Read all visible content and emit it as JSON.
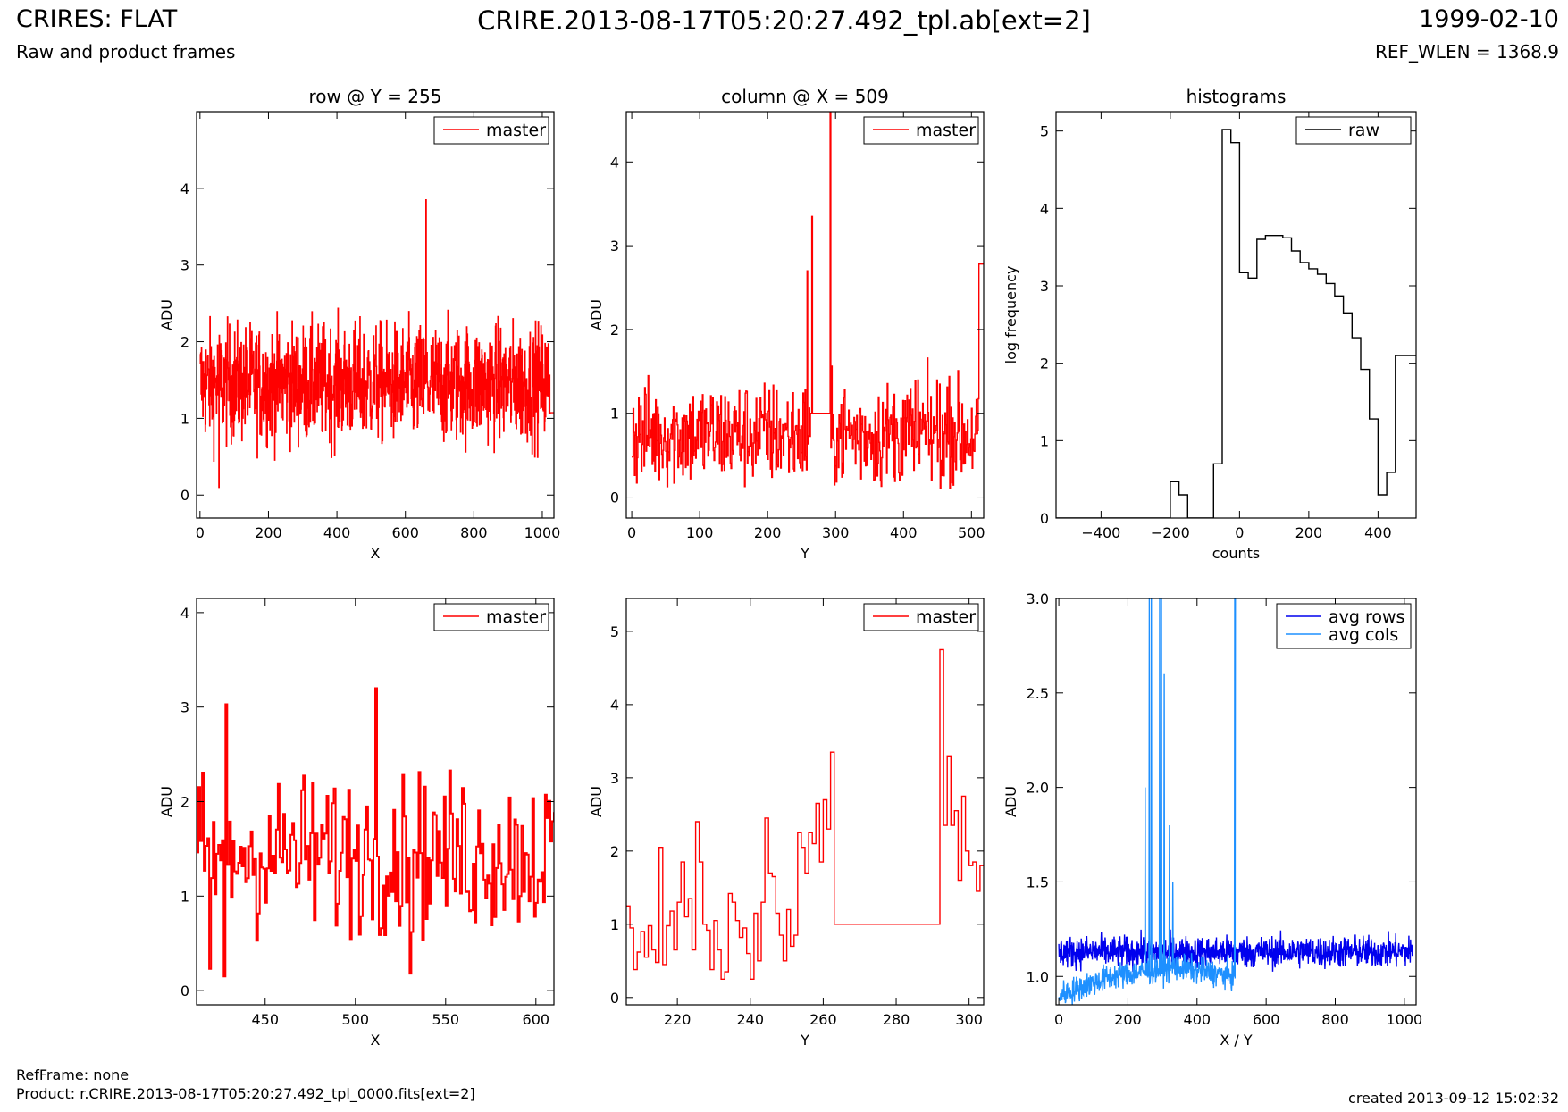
{
  "header": {
    "title": "CRIRES: FLAT",
    "subtitle": "Raw and product frames",
    "file": "CRIRE.2013-08-17T05:20:27.492_tpl.ab[ext=2]",
    "date": "1999-02-10",
    "ref_wlen": "REF_WLEN = 1368.9"
  },
  "footer": {
    "refframe": "RefFrame: none",
    "product": "Product: r.CRIRE.2013-08-17T05:20:27.492_tpl_0000.fits[ext=2]",
    "created": "created 2013-09-12 15:02:32"
  },
  "colors": {
    "red": "#ff0000",
    "black": "#000000",
    "blue": "#0000ee",
    "lightblue": "#1e90ff"
  },
  "chart_data": [
    {
      "id": "row",
      "type": "line",
      "title": "row @ Y = 255",
      "xlabel": "X",
      "ylabel": "ADU",
      "xlim": [
        -10,
        1034
      ],
      "ylim": [
        -0.3,
        5.0
      ],
      "xticks": [
        0,
        200,
        400,
        600,
        800,
        1000
      ],
      "yticks": [
        0,
        1,
        2,
        3,
        4
      ],
      "legend_position": "top-right",
      "series": [
        {
          "name": "master",
          "color": "#ff0000",
          "step": true,
          "generated": {
            "x0": 0,
            "x1": 1023,
            "n": 1024,
            "mean": 1.45,
            "spread": 0.55,
            "spikes": [
              [
                660,
                3.85
              ],
              [
                55,
                0.1
              ]
            ]
          }
        }
      ]
    },
    {
      "id": "column",
      "type": "line",
      "title": "column @ X = 509",
      "xlabel": "Y",
      "ylabel": "ADU",
      "xlim": [
        -8,
        518
      ],
      "ylim": [
        -0.25,
        4.6
      ],
      "xticks": [
        0,
        100,
        200,
        300,
        400,
        500
      ],
      "yticks": [
        0,
        1,
        2,
        3,
        4
      ],
      "legend_position": "top-right",
      "series": [
        {
          "name": "master",
          "color": "#ff0000",
          "step": true,
          "generated": {
            "x0": 0,
            "x1": 511,
            "n": 512,
            "mean": 0.75,
            "spread": 0.45,
            "flat": [
              [
                263,
                292,
                1.0
              ]
            ],
            "spikes": [
              [
                292,
                4.6
              ],
              [
                265,
                3.35
              ],
              [
                511,
                2.78
              ],
              [
                258,
                2.7
              ]
            ]
          }
        }
      ]
    },
    {
      "id": "histograms",
      "type": "line",
      "title": "histograms",
      "xlabel": "counts",
      "ylabel": "log frequency",
      "xlim": [
        -530,
        510
      ],
      "ylim": [
        0,
        5.25
      ],
      "xticks": [
        -400,
        -200,
        0,
        200,
        400
      ],
      "yticks": [
        0,
        1,
        2,
        3,
        4,
        5
      ],
      "legend_position": "top-right",
      "series": [
        {
          "name": "raw",
          "color": "#000000",
          "step": true,
          "x": [
            -530,
            -200,
            -175,
            -150,
            -75,
            -50,
            -25,
            0,
            25,
            50,
            75,
            100,
            125,
            150,
            175,
            200,
            225,
            250,
            275,
            300,
            325,
            350,
            375,
            400,
            425,
            450,
            475,
            500
          ],
          "y": [
            0,
            0.47,
            0.3,
            0,
            0.7,
            5.02,
            4.85,
            3.17,
            3.1,
            3.6,
            3.65,
            3.65,
            3.62,
            3.45,
            3.3,
            3.22,
            3.15,
            3.03,
            2.87,
            2.65,
            2.33,
            1.92,
            1.28,
            0.3,
            0.59,
            2.1,
            2.1,
            2.1
          ]
        }
      ]
    },
    {
      "id": "row-zoom",
      "type": "line",
      "title": "",
      "xlabel": "X",
      "ylabel": "ADU",
      "xlim": [
        412,
        610
      ],
      "ylim": [
        -0.15,
        4.15
      ],
      "xticks": [
        450,
        500,
        550,
        600
      ],
      "yticks": [
        0,
        1,
        2,
        3,
        4
      ],
      "legend_position": "top-right",
      "series": [
        {
          "name": "master",
          "color": "#ff0000",
          "step": true,
          "generated": {
            "x0": 412,
            "x1": 610,
            "n": 199,
            "mean": 1.45,
            "spread": 0.6,
            "spikes": [
              [
                511,
                3.2
              ],
              [
                428,
                3.03
              ],
              [
                530,
                0.18
              ],
              [
                427,
                0.15
              ],
              [
                419,
                0.23
              ]
            ]
          }
        }
      ]
    },
    {
      "id": "column-zoom",
      "type": "line",
      "title": "",
      "xlabel": "Y",
      "ylabel": "ADU",
      "xlim": [
        206,
        304
      ],
      "ylim": [
        -0.1,
        5.45
      ],
      "xticks": [
        220,
        240,
        260,
        280,
        300
      ],
      "yticks": [
        0,
        1,
        2,
        3,
        4,
        5
      ],
      "legend_position": "top-right",
      "series": [
        {
          "name": "master",
          "color": "#ff0000",
          "step": true,
          "x": [
            206,
            207,
            208,
            209,
            210,
            211,
            212,
            213,
            214,
            215,
            216,
            217,
            218,
            219,
            220,
            221,
            222,
            223,
            224,
            225,
            226,
            227,
            228,
            229,
            230,
            231,
            232,
            233,
            234,
            235,
            236,
            237,
            238,
            239,
            240,
            241,
            242,
            243,
            244,
            245,
            246,
            247,
            248,
            249,
            250,
            251,
            252,
            253,
            254,
            255,
            256,
            257,
            258,
            259,
            260,
            261,
            262,
            263,
            292,
            293,
            294,
            295,
            296,
            297,
            298,
            299,
            300,
            301,
            302,
            303,
            304
          ],
          "y": [
            1.25,
            0.95,
            0.38,
            0.62,
            0.9,
            0.55,
            0.98,
            0.65,
            0.48,
            2.05,
            0.45,
            0.98,
            1.18,
            0.65,
            1.3,
            1.85,
            1.1,
            1.35,
            0.65,
            2.4,
            1.85,
            1.0,
            0.92,
            0.38,
            1.05,
            0.65,
            0.25,
            0.35,
            1.42,
            1.3,
            1.05,
            0.82,
            0.95,
            0.6,
            0.25,
            1.15,
            0.5,
            1.3,
            2.45,
            1.7,
            1.65,
            1.15,
            0.85,
            0.5,
            1.2,
            0.7,
            0.85,
            2.25,
            2.05,
            1.7,
            2.25,
            2.1,
            2.65,
            1.85,
            2.7,
            2.3,
            3.35,
            1.0,
            4.75,
            2.35,
            3.3,
            2.35,
            2.55,
            1.6,
            2.75,
            2.0,
            1.8,
            1.85,
            1.45,
            1.8,
            1.8
          ]
        }
      ]
    },
    {
      "id": "averages",
      "type": "line",
      "title": "",
      "xlabel": "X / Y",
      "ylabel": "ADU",
      "xlim": [
        -8,
        1034
      ],
      "ylim": [
        0.85,
        3.0
      ],
      "xticks": [
        0,
        200,
        400,
        600,
        800,
        1000
      ],
      "yticks": [
        1.0,
        1.5,
        2.0,
        2.5,
        3.0
      ],
      "legend_position": "top-right",
      "series": [
        {
          "name": "avg rows",
          "color": "#0000ee",
          "step": false,
          "generated": {
            "x0": 0,
            "x1": 1023,
            "n": 1024,
            "mean": 1.13,
            "spread": 0.06
          }
        },
        {
          "name": "avg cols",
          "color": "#1e90ff",
          "step": false,
          "generated": {
            "x0": 0,
            "x1": 511,
            "n": 512,
            "mean": 1.0,
            "spread": 0.05,
            "ramp": [
              [
                0,
                0.9
              ],
              [
                150,
                1.0
              ],
              [
                340,
                1.05
              ],
              [
                511,
                1.0
              ]
            ],
            "spikes": [
              [
                262,
                3.0
              ],
              [
                268,
                3.0
              ],
              [
                292,
                3.0
              ],
              [
                297,
                3.0
              ],
              [
                509,
                3.0
              ],
              [
                511,
                3.0
              ],
              [
                250,
                2.0
              ],
              [
                305,
                2.6
              ],
              [
                320,
                1.8
              ],
              [
                330,
                1.5
              ]
            ]
          }
        }
      ]
    }
  ]
}
